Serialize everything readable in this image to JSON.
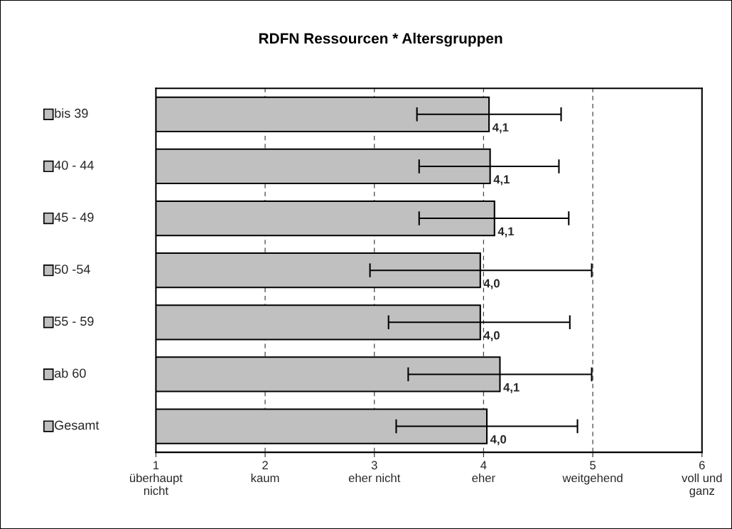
{
  "chart_data": {
    "type": "bar",
    "orientation": "horizontal",
    "title": "RDFN Ressourcen * Altersgruppen",
    "categories": [
      "bis 39",
      "40 - 44",
      "45 - 49",
      "50 -54",
      "55 - 59",
      "ab 60",
      "Gesamt"
    ],
    "values": [
      4.05,
      4.06,
      4.1,
      3.97,
      3.97,
      4.15,
      4.03
    ],
    "errors": [
      [
        3.39,
        4.71
      ],
      [
        3.41,
        4.69
      ],
      [
        3.41,
        4.78
      ],
      [
        2.96,
        4.99
      ],
      [
        3.13,
        4.79
      ],
      [
        3.31,
        4.99
      ],
      [
        3.2,
        4.86
      ]
    ],
    "value_labels": [
      "4,1",
      "4,1",
      "4,1",
      "4,0",
      "4,0",
      "4,1",
      "4,0"
    ],
    "color": "#c0c0c0",
    "xlim": [
      1,
      6
    ],
    "xticks": [
      {
        "value": 1,
        "label": "1\nüberhaupt\nnicht"
      },
      {
        "value": 2,
        "label": "2\nkaum"
      },
      {
        "value": 3,
        "label": "3\neher nicht"
      },
      {
        "value": 4,
        "label": "4\neher"
      },
      {
        "value": 5,
        "label": "5\nweitgehend"
      },
      {
        "value": 6,
        "label": "6\nvoll und\nganz"
      }
    ],
    "grid": "x"
  }
}
